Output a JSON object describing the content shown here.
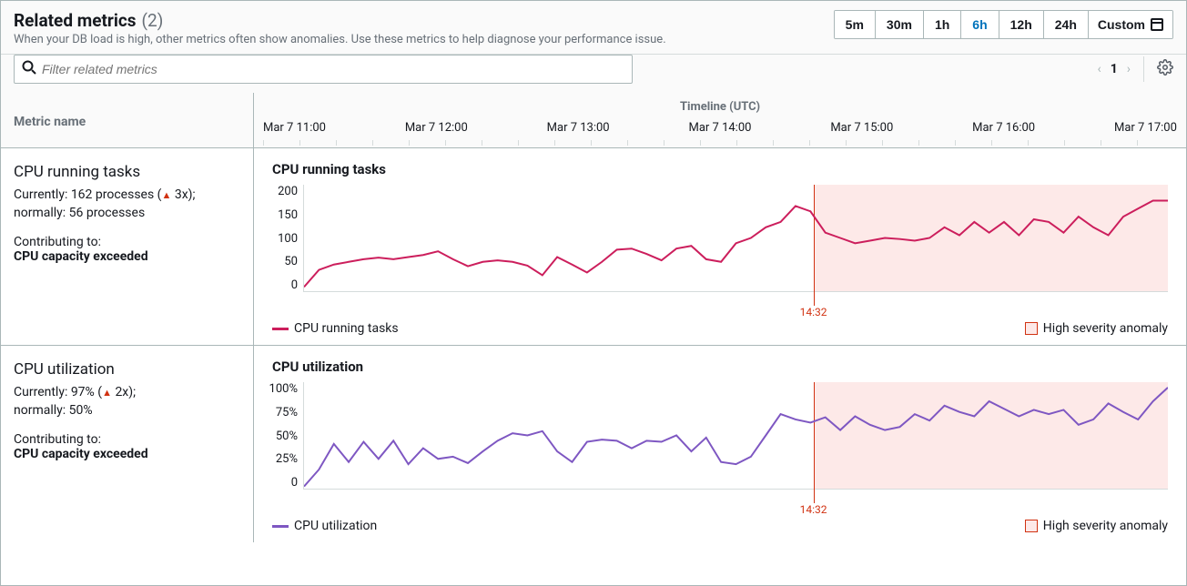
{
  "header": {
    "title": "Related metrics",
    "count": "(2)",
    "subtitle": "When your DB load is high, other metrics often show anomalies. Use these metrics to help diagnose your performance issue."
  },
  "time_ranges": [
    "5m",
    "30m",
    "1h",
    "6h",
    "12h",
    "24h"
  ],
  "time_active": "6h",
  "custom_label": "Custom",
  "search": {
    "placeholder": "Filter related metrics"
  },
  "pager": {
    "current": "1"
  },
  "columns": {
    "name": "Metric name",
    "timeline": "Timeline (UTC)"
  },
  "timeline_labels": [
    "Mar 7  11:00",
    "Mar 7  12:00",
    "Mar 7  13:00",
    "Mar 7  14:00",
    "Mar 7  15:00",
    "Mar 7  16:00",
    "Mar 7  17:00"
  ],
  "anomaly": {
    "marker_time": "14:32",
    "marker_pct": 58.9,
    "legend": "High severity anomaly",
    "bg_start_pct": 58.9
  },
  "metrics": [
    {
      "name": "CPU running tasks",
      "chart_title": "CPU running tasks",
      "current_prefix": "Currently: 162 processes (",
      "current_delta": " 3x",
      "current_suffix": ");",
      "normal": "normally: 56 processes",
      "contributing_label": "Contributing to:",
      "contributing_to": "CPU capacity exceeded",
      "legend_series": "CPU running tasks",
      "color": "#cc1e5c",
      "ylim": [
        0,
        200
      ],
      "yticks": [
        "200",
        "150",
        "100",
        "50",
        "0"
      ],
      "values": [
        8,
        40,
        50,
        55,
        60,
        63,
        60,
        64,
        68,
        75,
        60,
        47,
        55,
        58,
        55,
        48,
        30,
        64,
        50,
        35,
        55,
        78,
        80,
        70,
        58,
        80,
        85,
        60,
        55,
        90,
        100,
        120,
        130,
        160,
        150,
        110,
        100,
        90,
        95,
        100,
        98,
        95,
        100,
        120,
        105,
        130,
        110,
        130,
        105,
        135,
        130,
        110,
        140,
        120,
        105,
        140,
        155,
        170,
        170
      ]
    },
    {
      "name": "CPU utilization",
      "chart_title": "CPU utilization",
      "current_prefix": "Currently: 97% (",
      "current_delta": " 2x",
      "current_suffix": ");",
      "normal": "normally: 50%",
      "contributing_label": "Contributing to:",
      "contributing_to": "CPU capacity exceeded",
      "legend_series": "CPU utilization",
      "color": "#7e57c2",
      "ylim": [
        0,
        100
      ],
      "yticks": [
        "100%",
        "75%",
        "50%",
        "25%",
        "0"
      ],
      "values": [
        2,
        18,
        42,
        25,
        44,
        28,
        45,
        23,
        38,
        28,
        30,
        24,
        35,
        45,
        52,
        50,
        54,
        35,
        25,
        44,
        46,
        45,
        38,
        45,
        44,
        50,
        35,
        48,
        25,
        23,
        30,
        50,
        70,
        65,
        62,
        67,
        55,
        68,
        60,
        55,
        58,
        70,
        64,
        78,
        72,
        68,
        82,
        75,
        68,
        74,
        70,
        74,
        60,
        65,
        80,
        72,
        65,
        82,
        95
      ]
    }
  ]
}
